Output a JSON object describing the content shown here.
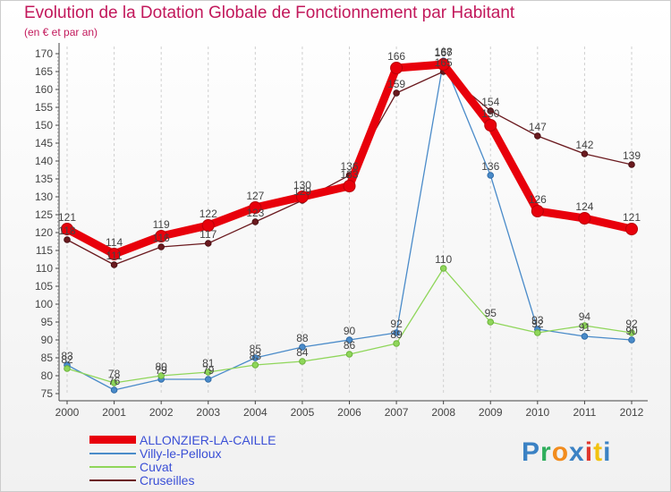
{
  "header": {
    "title": "Evolution de la Dotation Globale de Fonctionnement par Habitant",
    "subtitle": "(en € et par an)"
  },
  "logo": {
    "text": "Proxiti",
    "colors": [
      "#3b82c4",
      "#2fae5c",
      "#f28c1e",
      "#3b82c4",
      "#e0362c",
      "#f2c20f",
      "#3b82c4"
    ]
  },
  "chart_data": {
    "type": "line",
    "title": "Evolution de la Dotation Globale de Fonctionnement par Habitant",
    "subtitle": "(en € et par an)",
    "xlabel": "",
    "ylabel": "",
    "ylim": [
      75,
      170
    ],
    "ytick_step": 5,
    "grid": "vertical dashed",
    "categories": [
      "2000",
      "2001",
      "2002",
      "2003",
      "2004",
      "2005",
      "2006",
      "2007",
      "2008",
      "2009",
      "2010",
      "2011",
      "2012"
    ],
    "series": [
      {
        "name": "ALLONZIER-LA-CAILLE",
        "color": "#e8000b",
        "bold": true,
        "values": [
          121,
          114,
          119,
          122,
          127,
          130,
          133,
          166,
          167,
          150,
          126,
          124,
          121
        ],
        "labels": [
          "121",
          "114",
          "119",
          "122",
          "127",
          "130",
          "133",
          "166",
          "167",
          "150",
          "126",
          "124",
          "121"
        ]
      },
      {
        "name": "Villy-le-Pelloux",
        "color": "#4a8bc9",
        "bold": false,
        "values": [
          83,
          76,
          79,
          79,
          85,
          88,
          90,
          92,
          168,
          136,
          93,
          91,
          90
        ],
        "labels": [
          "83",
          "76",
          "79",
          "79",
          "85",
          "88",
          "90",
          "92",
          "168",
          "136",
          "93",
          "91",
          "90"
        ]
      },
      {
        "name": "Cuvat",
        "color": "#8fd65a",
        "bold": false,
        "values": [
          82,
          78,
          80,
          81,
          83,
          84,
          86,
          89,
          110,
          95,
          92,
          94,
          92
        ],
        "labels": [
          "82",
          "78",
          "80",
          "81",
          "83",
          "84",
          "86",
          "89",
          "110",
          "95",
          "92",
          "94",
          "92"
        ]
      },
      {
        "name": "Cruseilles",
        "color": "#6b1a1f",
        "bold": false,
        "values": [
          118,
          111,
          116,
          117,
          123,
          129,
          136,
          159,
          165,
          154,
          147,
          142,
          139
        ],
        "labels": [
          "118",
          "111",
          "116",
          "117",
          "123",
          "129",
          "136",
          "159",
          "165",
          "154",
          "147",
          "142",
          "139"
        ]
      }
    ]
  }
}
